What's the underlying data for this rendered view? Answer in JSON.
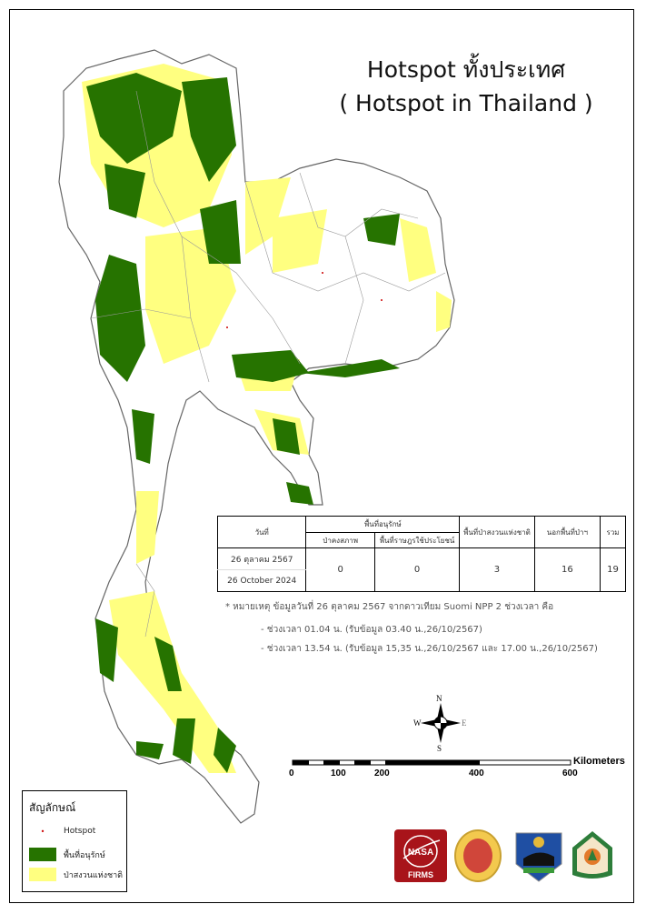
{
  "title": {
    "line1": "Hotspot ทั้งประเทศ",
    "line2": "( Hotspot in Thailand )"
  },
  "table": {
    "headers": {
      "date": "วันที่",
      "conservation": "พื้นที่อนุรักษ์",
      "natural_forest": "ป่าคงสภาพ",
      "community_use": "พื้นที่ราษฎรใช้ประโยชน์",
      "national_reserve": "พื้นที่ป่าสงวนแห่งชาติ",
      "outside_forest": "นอกพื้นที่ป่าฯ",
      "total": "รวม"
    },
    "row": {
      "date_th": "26 ตุลาคม 2567",
      "date_en": "26 October 2024",
      "natural_forest": "0",
      "community_use": "0",
      "national_reserve": "3",
      "outside_forest": "16",
      "total": "19"
    }
  },
  "notes": [
    "* หมายเหตุ ข้อมูลวันที่ 26 ตุลาคม 2567 จากดาวเทียม Suomi NPP 2 ช่วงเวลา คือ",
    "- ช่วงเวลา 01.04 น. (รับข้อมูล 03.40 น.,26/10/2567)",
    "- ช่วงเวลา 13.54 น. (รับข้อมูล 15,35 น.,26/10/2567 และ 17.00 น.,26/10/2567)"
  ],
  "north_arrow": {
    "n": "N",
    "s": "S",
    "e": "E",
    "w": "W"
  },
  "scale_bar": {
    "unit": "Kilometers",
    "ticks": [
      "0",
      "100",
      "200",
      "400",
      "600"
    ]
  },
  "legend": {
    "title": "สัญลักษณ์",
    "items": [
      {
        "label": "Hotspot",
        "color": "#cc0000"
      },
      {
        "label": "พื้นที่อนุรักษ์",
        "color": "#267300"
      },
      {
        "label": "ป่าสงวนแห่งชาติ",
        "color": "#ffff80"
      }
    ]
  },
  "logos": [
    {
      "name": "nasa-firms",
      "text": "FIRMS"
    },
    {
      "name": "dnp-seal"
    },
    {
      "name": "forest-protection-badge"
    },
    {
      "name": "forest-fire-control-badge"
    }
  ],
  "colors": {
    "conservation": "#267300",
    "reserve": "#ffff80",
    "boundary": "#888888"
  }
}
